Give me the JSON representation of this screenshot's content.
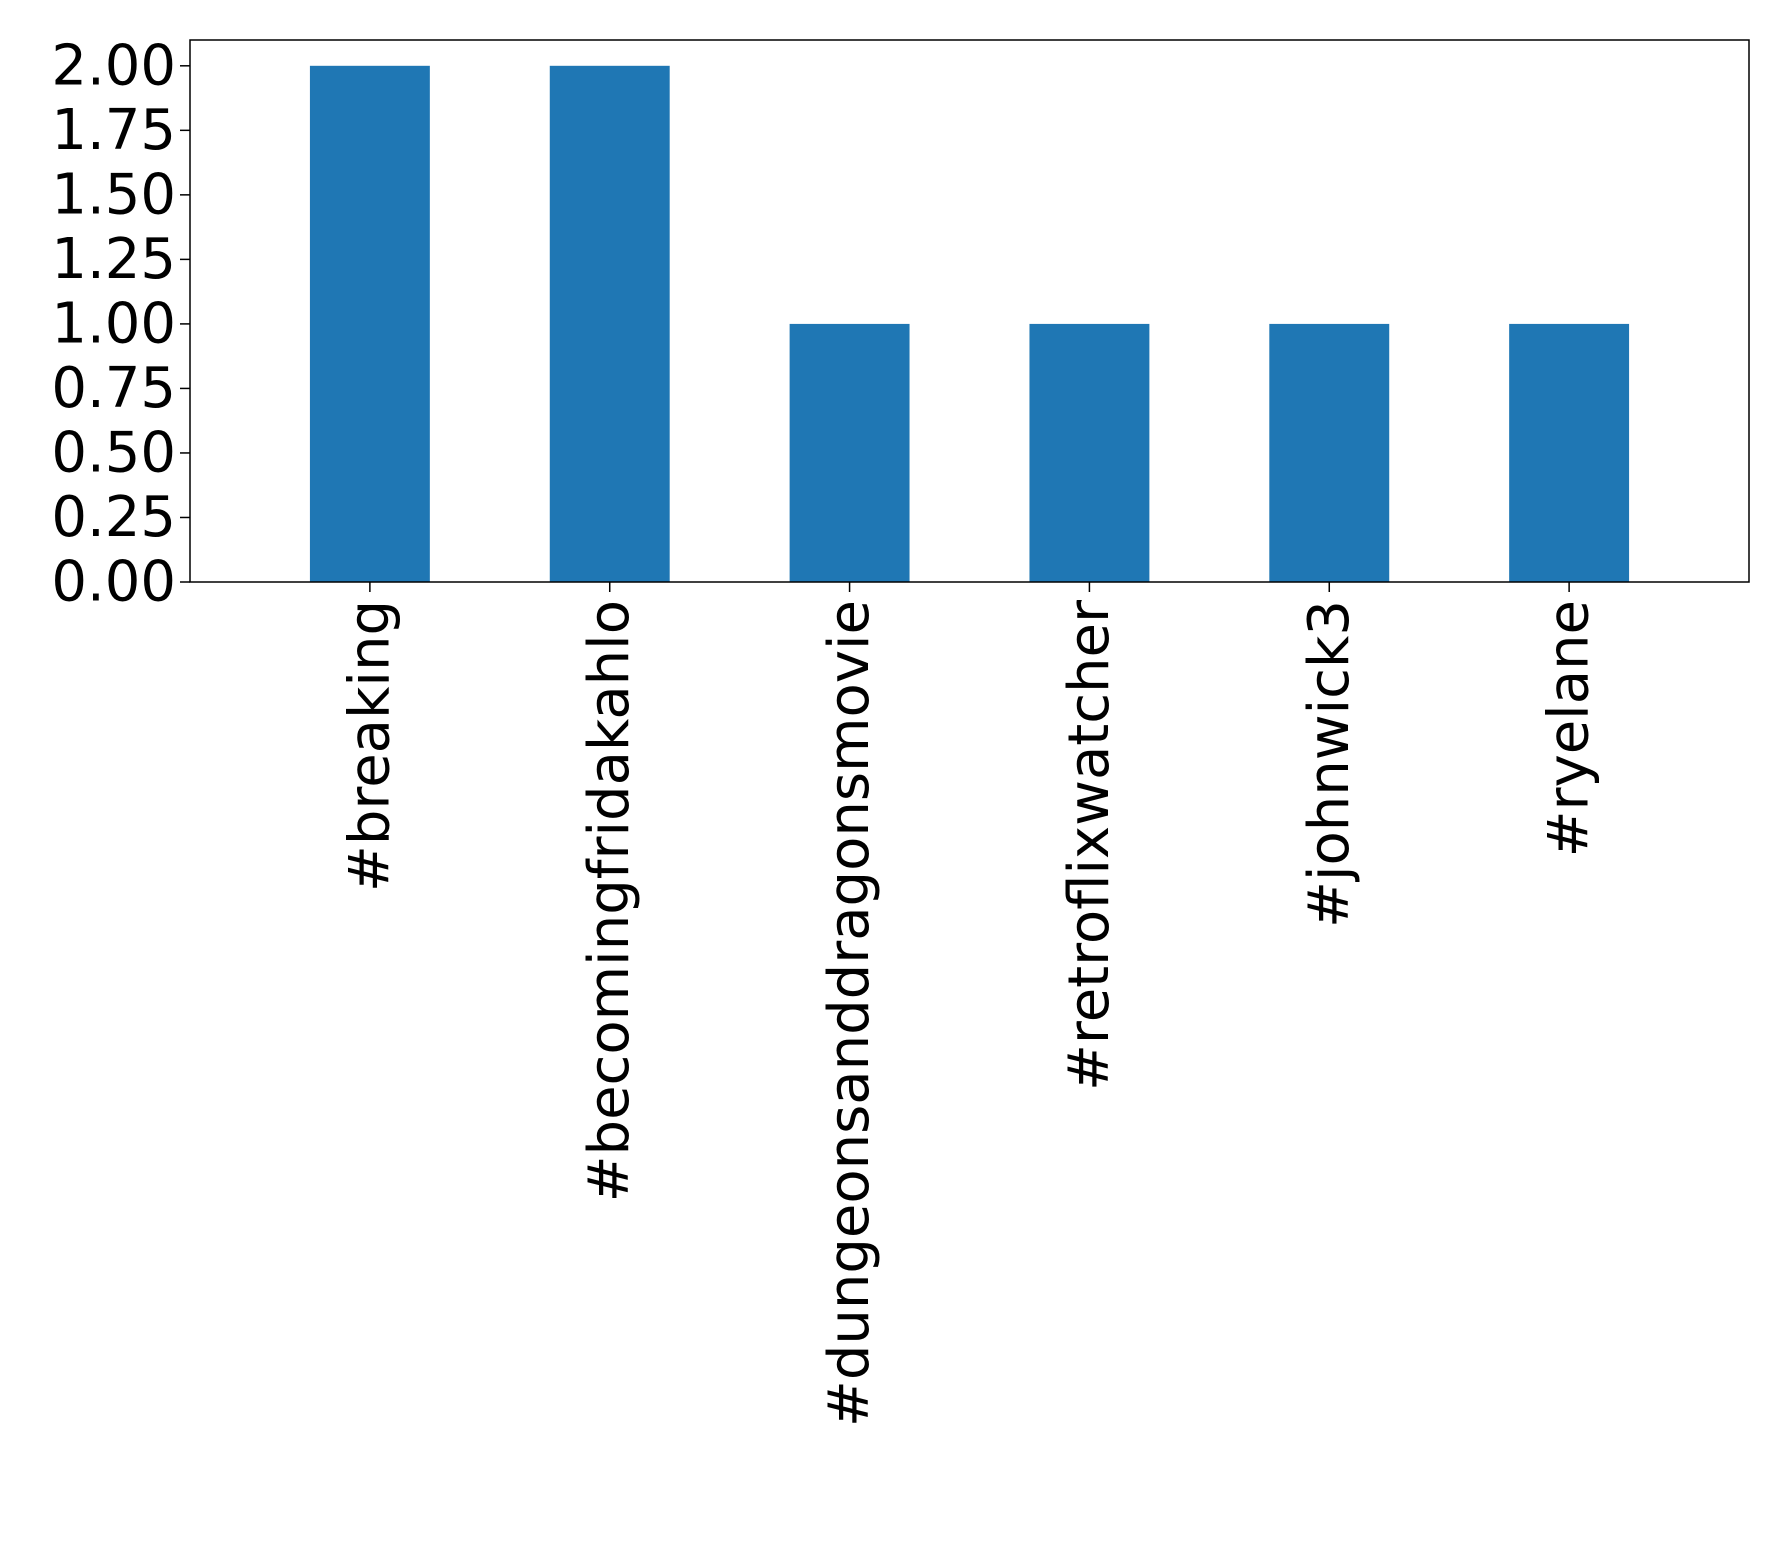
{
  "chart_data": {
    "type": "bar",
    "title": "",
    "xlabel": "",
    "ylabel": "",
    "categories": [
      "#breaking",
      "#becomingfridakahlo",
      "#dungeonsanddragonsmovie",
      "#retroflixwatcher",
      "#johnwick3",
      "#ryelane"
    ],
    "values": [
      2,
      2,
      1,
      1,
      1,
      1
    ],
    "ylim": [
      0,
      2.1
    ],
    "yticks": [
      "0.00",
      "0.25",
      "0.50",
      "0.75",
      "1.00",
      "1.25",
      "1.50",
      "1.75",
      "2.00"
    ],
    "bar_color": "#1f77b4",
    "grid": false,
    "legend": "none"
  }
}
